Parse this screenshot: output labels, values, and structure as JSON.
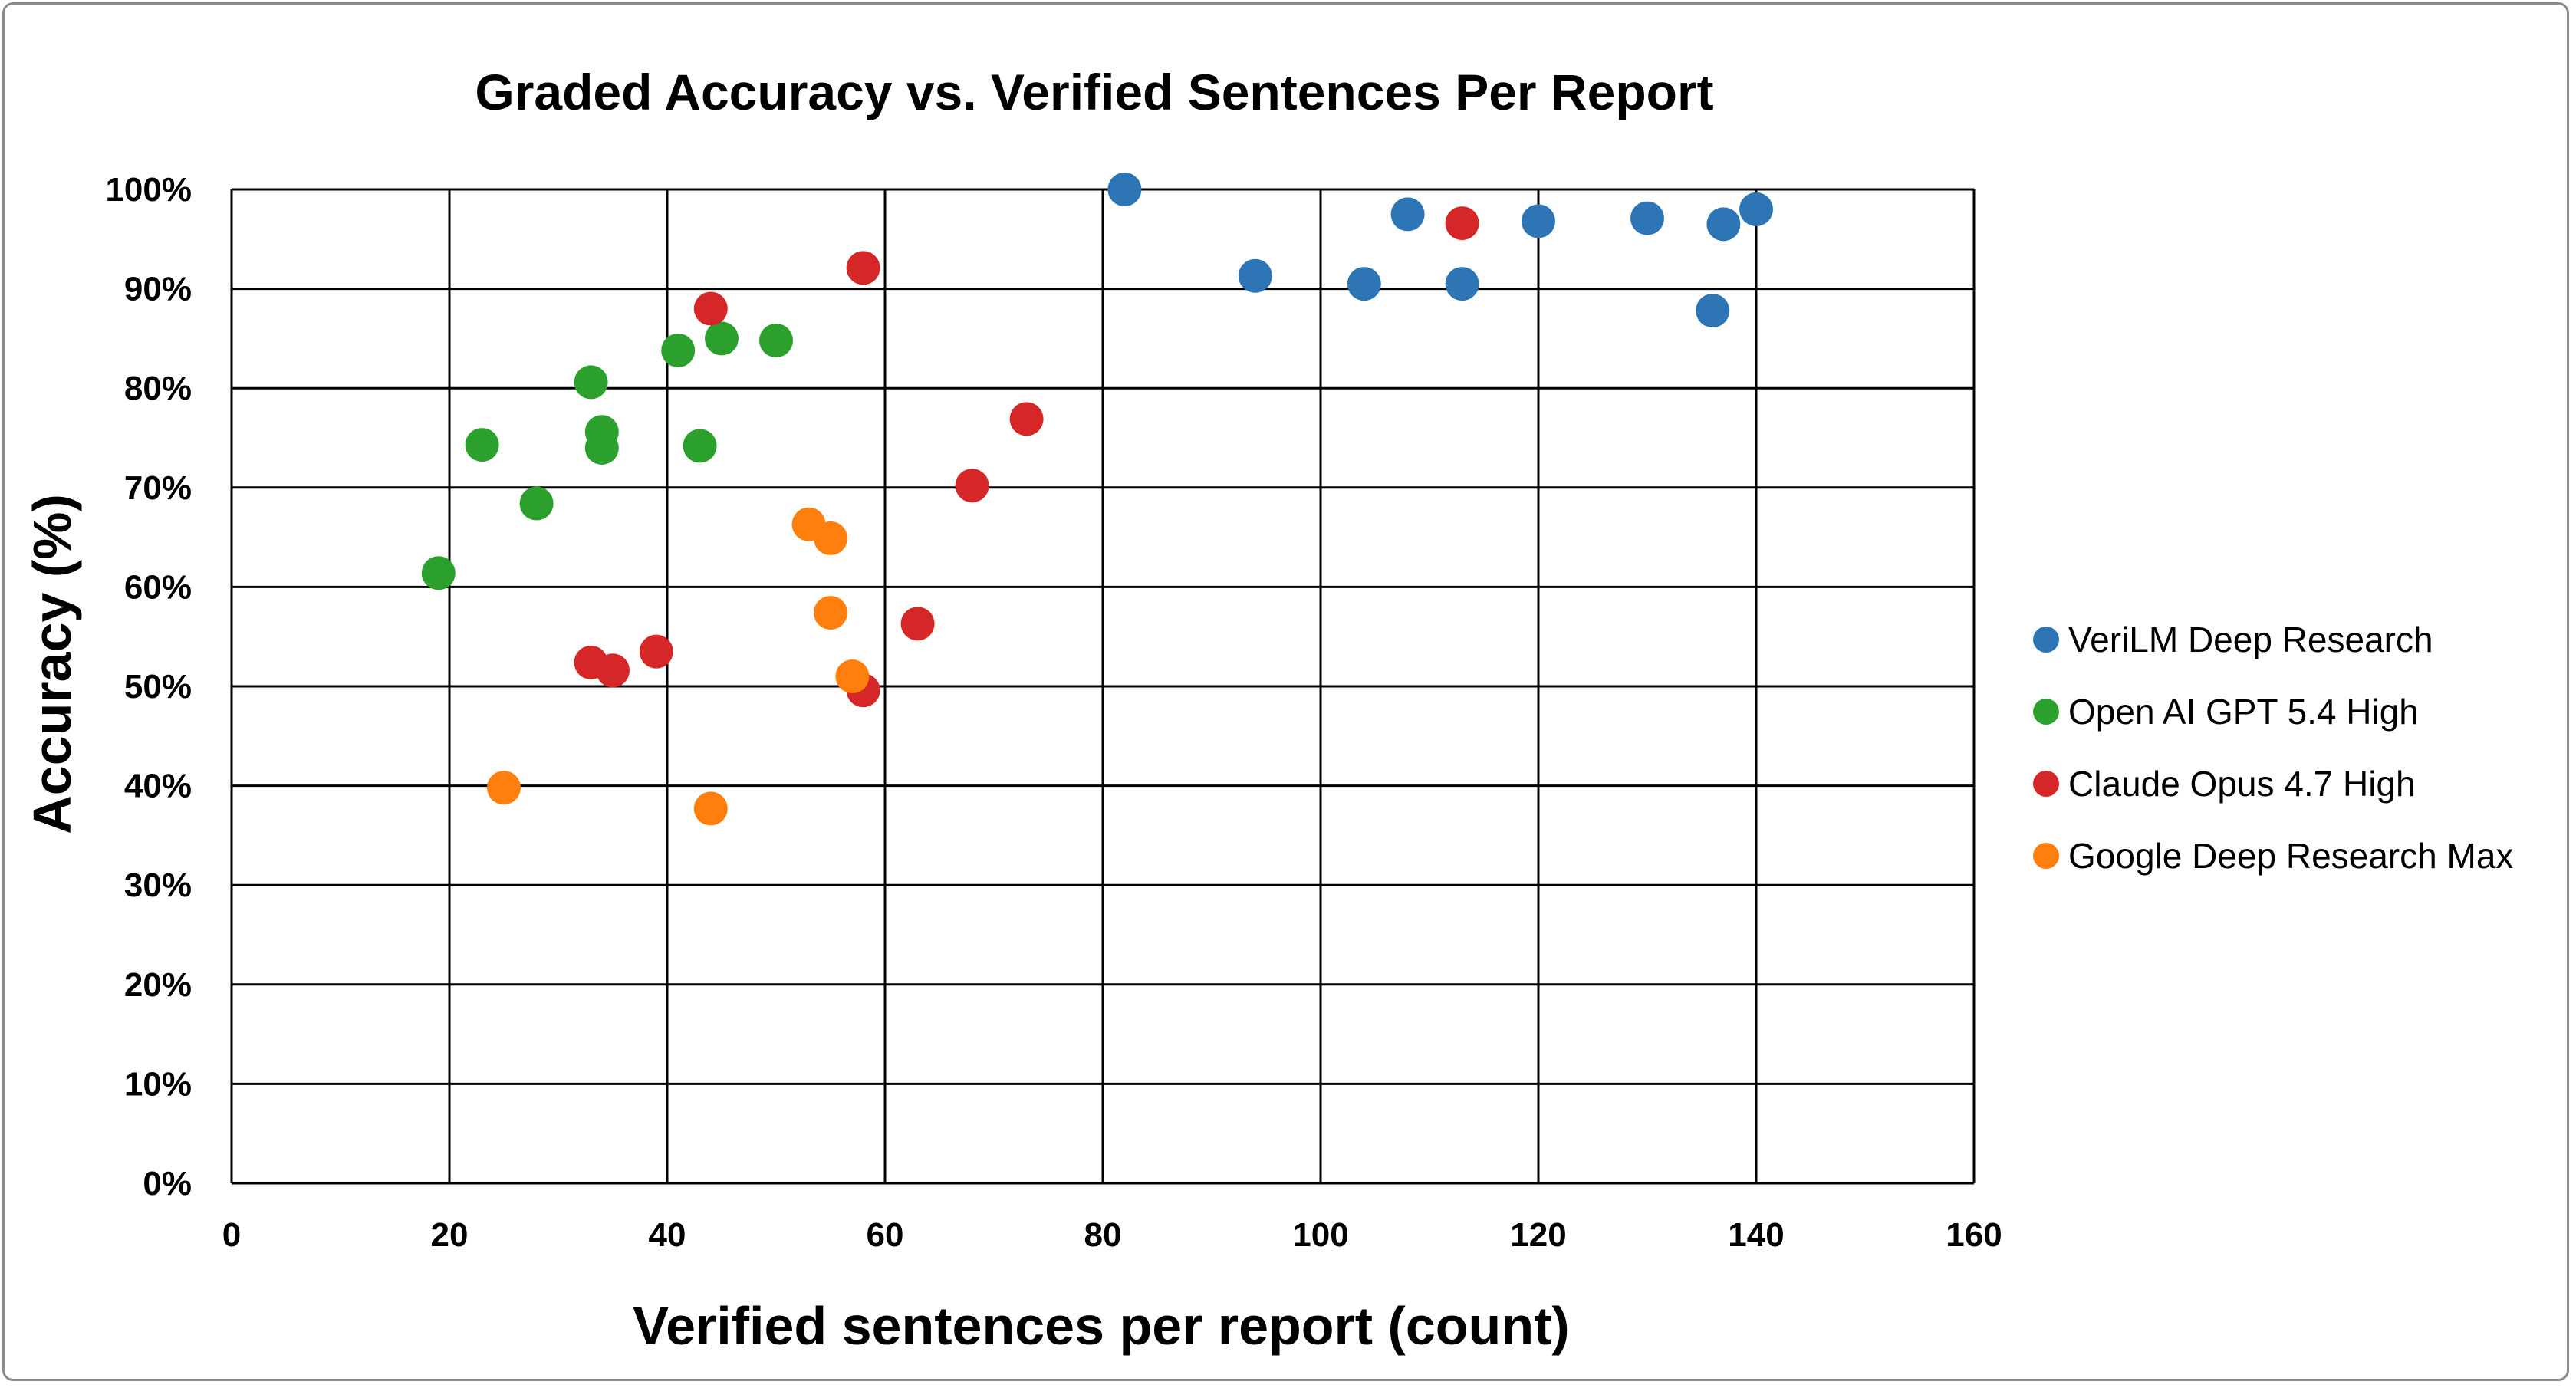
{
  "chart_data": {
    "type": "scatter",
    "title": "Graded Accuracy vs. Verified Sentences Per Report",
    "xlabel": "Verified sentences per report (count)",
    "ylabel": "Accuracy (%)",
    "xlim": [
      0,
      160
    ],
    "ylim": [
      0,
      100
    ],
    "x_ticks": [
      0,
      20,
      40,
      60,
      80,
      100,
      120,
      140,
      160
    ],
    "y_ticks": [
      0,
      10,
      20,
      30,
      40,
      50,
      60,
      70,
      80,
      90,
      100
    ],
    "x_tick_labels": [
      "0",
      "20",
      "40",
      "60",
      "80",
      "100",
      "120",
      "140",
      "160"
    ],
    "y_tick_labels": [
      "0%",
      "10%",
      "20%",
      "30%",
      "40%",
      "50%",
      "60%",
      "70%",
      "80%",
      "90%",
      "100%"
    ],
    "grid": true,
    "legend_position": "right",
    "series": [
      {
        "name": "VeriLM Deep Research",
        "color": "#2e75b6",
        "points": [
          {
            "x": 82,
            "y": 100
          },
          {
            "x": 94,
            "y": 91.3
          },
          {
            "x": 104,
            "y": 90.5
          },
          {
            "x": 108,
            "y": 97.5
          },
          {
            "x": 113,
            "y": 90.5
          },
          {
            "x": 120,
            "y": 96.8
          },
          {
            "x": 130,
            "y": 97.1
          },
          {
            "x": 136,
            "y": 87.8
          },
          {
            "x": 137,
            "y": 96.5
          },
          {
            "x": 140,
            "y": 98
          }
        ]
      },
      {
        "name": "Open AI GPT 5.4 High",
        "color": "#2ca02c",
        "points": [
          {
            "x": 19,
            "y": 61.4
          },
          {
            "x": 23,
            "y": 74.3
          },
          {
            "x": 28,
            "y": 68.4
          },
          {
            "x": 33,
            "y": 80.6
          },
          {
            "x": 34,
            "y": 75.6
          },
          {
            "x": 34,
            "y": 74
          },
          {
            "x": 41,
            "y": 83.8
          },
          {
            "x": 43,
            "y": 74.2
          },
          {
            "x": 45,
            "y": 85
          },
          {
            "x": 50,
            "y": 84.8
          }
        ]
      },
      {
        "name": "Claude Opus 4.7 High",
        "color": "#d62728",
        "points": [
          {
            "x": 33,
            "y": 52.4
          },
          {
            "x": 35,
            "y": 51.6
          },
          {
            "x": 39,
            "y": 53.5
          },
          {
            "x": 44,
            "y": 88
          },
          {
            "x": 58,
            "y": 92.1
          },
          {
            "x": 58,
            "y": 49.6
          },
          {
            "x": 63,
            "y": 56.3
          },
          {
            "x": 68,
            "y": 70.2
          },
          {
            "x": 73,
            "y": 76.9
          },
          {
            "x": 113,
            "y": 96.6
          }
        ]
      },
      {
        "name": "Google Deep Research Max",
        "color": "#ff7f0e",
        "points": [
          {
            "x": 25,
            "y": 39.8
          },
          {
            "x": 44,
            "y": 37.7
          },
          {
            "x": 53,
            "y": 66.3
          },
          {
            "x": 55,
            "y": 64.9
          },
          {
            "x": 55,
            "y": 57.4
          },
          {
            "x": 57,
            "y": 51
          }
        ]
      }
    ]
  }
}
